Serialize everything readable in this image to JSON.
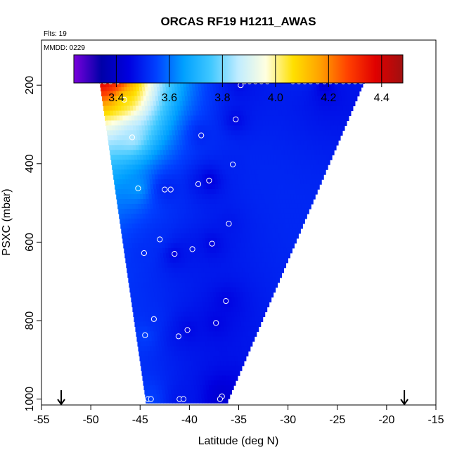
{
  "chart_data": {
    "type": "heatmap",
    "title": "ORCAS RF19 H1211_AWAS",
    "flights_label": "Flts: 19",
    "mmdd_label": "MMDD: 0229",
    "xlabel": "Latitude (deg N)",
    "ylabel": "PSXC (mbar)",
    "xlim": [
      -55,
      -15
    ],
    "ylim": [
      1015,
      85
    ],
    "y_reversed": true,
    "x_ticks": [
      -55,
      -50,
      -45,
      -40,
      -35,
      -30,
      -25,
      -20,
      -15
    ],
    "y_ticks": [
      200,
      400,
      600,
      800,
      1000
    ],
    "colorbar": {
      "min": 3.24,
      "max": 4.48,
      "ticks": [
        3.4,
        3.6,
        3.8,
        4.0,
        4.2,
        4.4
      ],
      "colors": [
        "#7a00dc",
        "#0000a8",
        "#0000e0",
        "#0040ff",
        "#00a0ff",
        "#40c8ff",
        "#c0ecff",
        "#ffffe0",
        "#ffe000",
        "#ffa000",
        "#ff4000",
        "#e00000",
        "#a01010"
      ]
    },
    "arrows_latitude": [
      -53,
      -18.2
    ],
    "rows": [
      {
        "p": 190,
        "xmin": -49.2,
        "xmax": -22.0
      },
      {
        "p": 240,
        "xmin": -48.6,
        "xmax": -23.0
      },
      {
        "p": 290,
        "xmin": -48.3,
        "xmax": -24.0
      },
      {
        "p": 340,
        "xmin": -48.0,
        "xmax": -24.7
      },
      {
        "p": 390,
        "xmin": -47.6,
        "xmax": -25.6
      },
      {
        "p": 440,
        "xmin": -47.3,
        "xmax": -26.6
      },
      {
        "p": 490,
        "xmin": -47.0,
        "xmax": -27.6
      },
      {
        "p": 540,
        "xmin": -46.8,
        "xmax": -28.5
      },
      {
        "p": 590,
        "xmin": -46.5,
        "xmax": -29.5
      },
      {
        "p": 640,
        "xmin": -46.2,
        "xmax": -30.3
      },
      {
        "p": 690,
        "xmin": -45.9,
        "xmax": -31.3
      },
      {
        "p": 740,
        "xmin": -45.6,
        "xmax": -32.1
      },
      {
        "p": 790,
        "xmin": -45.3,
        "xmax": -33.0
      },
      {
        "p": 840,
        "xmin": -45.1,
        "xmax": -33.8
      },
      {
        "p": 890,
        "xmin": -44.8,
        "xmax": -34.5
      },
      {
        "p": 940,
        "xmin": -44.6,
        "xmax": -35.3
      },
      {
        "p": 990,
        "xmin": -44.4,
        "xmax": -36.2
      }
    ],
    "observations": [
      {
        "lat": -49.1,
        "p": 190,
        "v": 4.4
      },
      {
        "lat": -48.6,
        "p": 190,
        "v": 4.4
      },
      {
        "lat": -48.0,
        "p": 190,
        "v": 4.35
      },
      {
        "lat": -47.3,
        "p": 190,
        "v": 4.3
      },
      {
        "lat": -34.8,
        "p": 200,
        "v": 3.45
      },
      {
        "lat": -34.4,
        "p": 190,
        "v": 3.48
      },
      {
        "lat": -33.9,
        "p": 190,
        "v": 3.48
      },
      {
        "lat": -33.3,
        "p": 190,
        "v": 3.48
      },
      {
        "lat": -32.7,
        "p": 190,
        "v": 3.48
      },
      {
        "lat": -32.1,
        "p": 190,
        "v": 3.5
      },
      {
        "lat": -29.5,
        "p": 190,
        "v": 3.5
      },
      {
        "lat": -28.9,
        "p": 190,
        "v": 3.5
      },
      {
        "lat": -28.3,
        "p": 190,
        "v": 3.5
      },
      {
        "lat": -27.7,
        "p": 190,
        "v": 3.5
      },
      {
        "lat": -27.0,
        "p": 190,
        "v": 3.5
      },
      {
        "lat": -26.3,
        "p": 190,
        "v": 3.28
      },
      {
        "lat": -25.7,
        "p": 190,
        "v": 3.48
      },
      {
        "lat": -25.1,
        "p": 190,
        "v": 3.48
      },
      {
        "lat": -24.4,
        "p": 190,
        "v": 3.48
      },
      {
        "lat": -23.8,
        "p": 190,
        "v": 3.48
      },
      {
        "lat": -23.2,
        "p": 190,
        "v": 3.48
      },
      {
        "lat": -22.6,
        "p": 190,
        "v": 3.48
      },
      {
        "lat": -46.6,
        "p": 237,
        "v": 4.05
      },
      {
        "lat": -35.3,
        "p": 287,
        "v": 3.45
      },
      {
        "lat": -38.8,
        "p": 328,
        "v": 3.5
      },
      {
        "lat": -45.8,
        "p": 333,
        "v": 3.85
      },
      {
        "lat": -35.6,
        "p": 402,
        "v": 3.5
      },
      {
        "lat": -38.0,
        "p": 443,
        "v": 3.42
      },
      {
        "lat": -39.1,
        "p": 452,
        "v": 3.48
      },
      {
        "lat": -45.2,
        "p": 463,
        "v": 3.65
      },
      {
        "lat": -42.5,
        "p": 466,
        "v": 3.5
      },
      {
        "lat": -41.9,
        "p": 466,
        "v": 3.5
      },
      {
        "lat": -36.0,
        "p": 553,
        "v": 3.48
      },
      {
        "lat": -43.0,
        "p": 593,
        "v": 3.52
      },
      {
        "lat": -37.7,
        "p": 604,
        "v": 3.45
      },
      {
        "lat": -39.7,
        "p": 618,
        "v": 3.48
      },
      {
        "lat": -44.6,
        "p": 628,
        "v": 3.52
      },
      {
        "lat": -41.5,
        "p": 630,
        "v": 3.45
      },
      {
        "lat": -36.3,
        "p": 750,
        "v": 3.45
      },
      {
        "lat": -43.6,
        "p": 796,
        "v": 3.52
      },
      {
        "lat": -37.3,
        "p": 806,
        "v": 3.45
      },
      {
        "lat": -40.2,
        "p": 824,
        "v": 3.45
      },
      {
        "lat": -44.5,
        "p": 837,
        "v": 3.55
      },
      {
        "lat": -41.1,
        "p": 840,
        "v": 3.48
      },
      {
        "lat": -36.7,
        "p": 993,
        "v": 3.42
      },
      {
        "lat": -44.2,
        "p": 1000,
        "v": 3.55
      },
      {
        "lat": -43.9,
        "p": 1000,
        "v": 3.55
      },
      {
        "lat": -41.0,
        "p": 1000,
        "v": 3.48
      },
      {
        "lat": -40.6,
        "p": 1000,
        "v": 3.48
      },
      {
        "lat": -36.9,
        "p": 1000,
        "v": 3.42
      }
    ]
  }
}
